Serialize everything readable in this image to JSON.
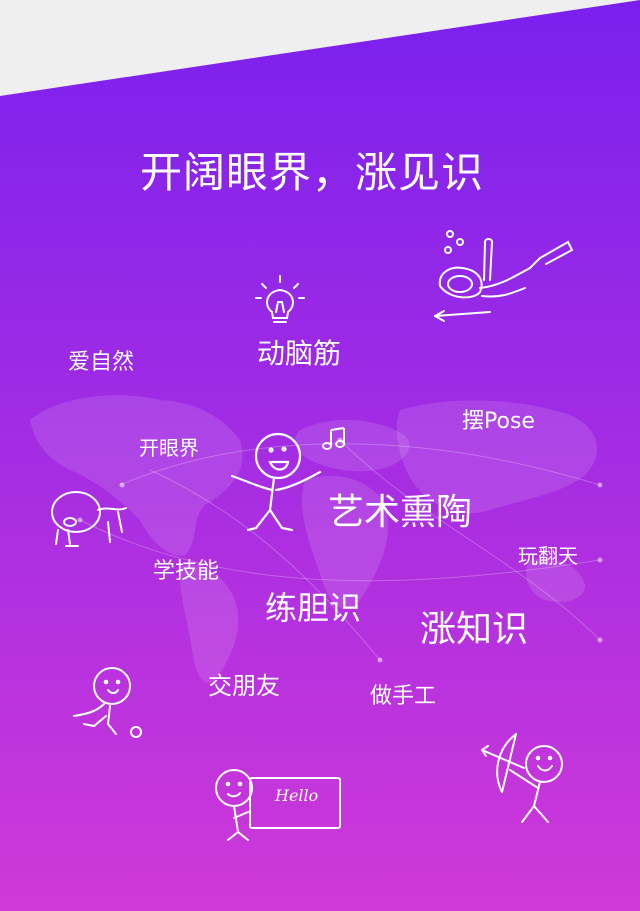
{
  "title": "开阔眼界，涨见识",
  "keywords": {
    "aiziran": "爱自然",
    "dongnaojin": "动脑筋",
    "baipose": "摆Pose",
    "kaiyanjie": "开眼界",
    "yishu": "艺术熏陶",
    "xuejineng": "学技能",
    "wanfantian": "玩翻天",
    "liandanshi": "练胆识",
    "zhangzhishi": "涨知识",
    "jiaopengyou": "交朋友",
    "zuoshougong": "做手工"
  },
  "sign_text": "Hello",
  "colors": {
    "gradient_top": "#7a20ee",
    "gradient_bottom": "#cf39d8",
    "top_band": "#efefef",
    "text": "#ffffff"
  },
  "icons": [
    "lightbulb-icon",
    "music-note-icon",
    "diver-doodle",
    "crawling-kid-doodle",
    "dancing-kid-doodle",
    "soccer-kid-doodle",
    "hello-sign-kid-doodle",
    "archer-kid-doodle",
    "world-map"
  ]
}
